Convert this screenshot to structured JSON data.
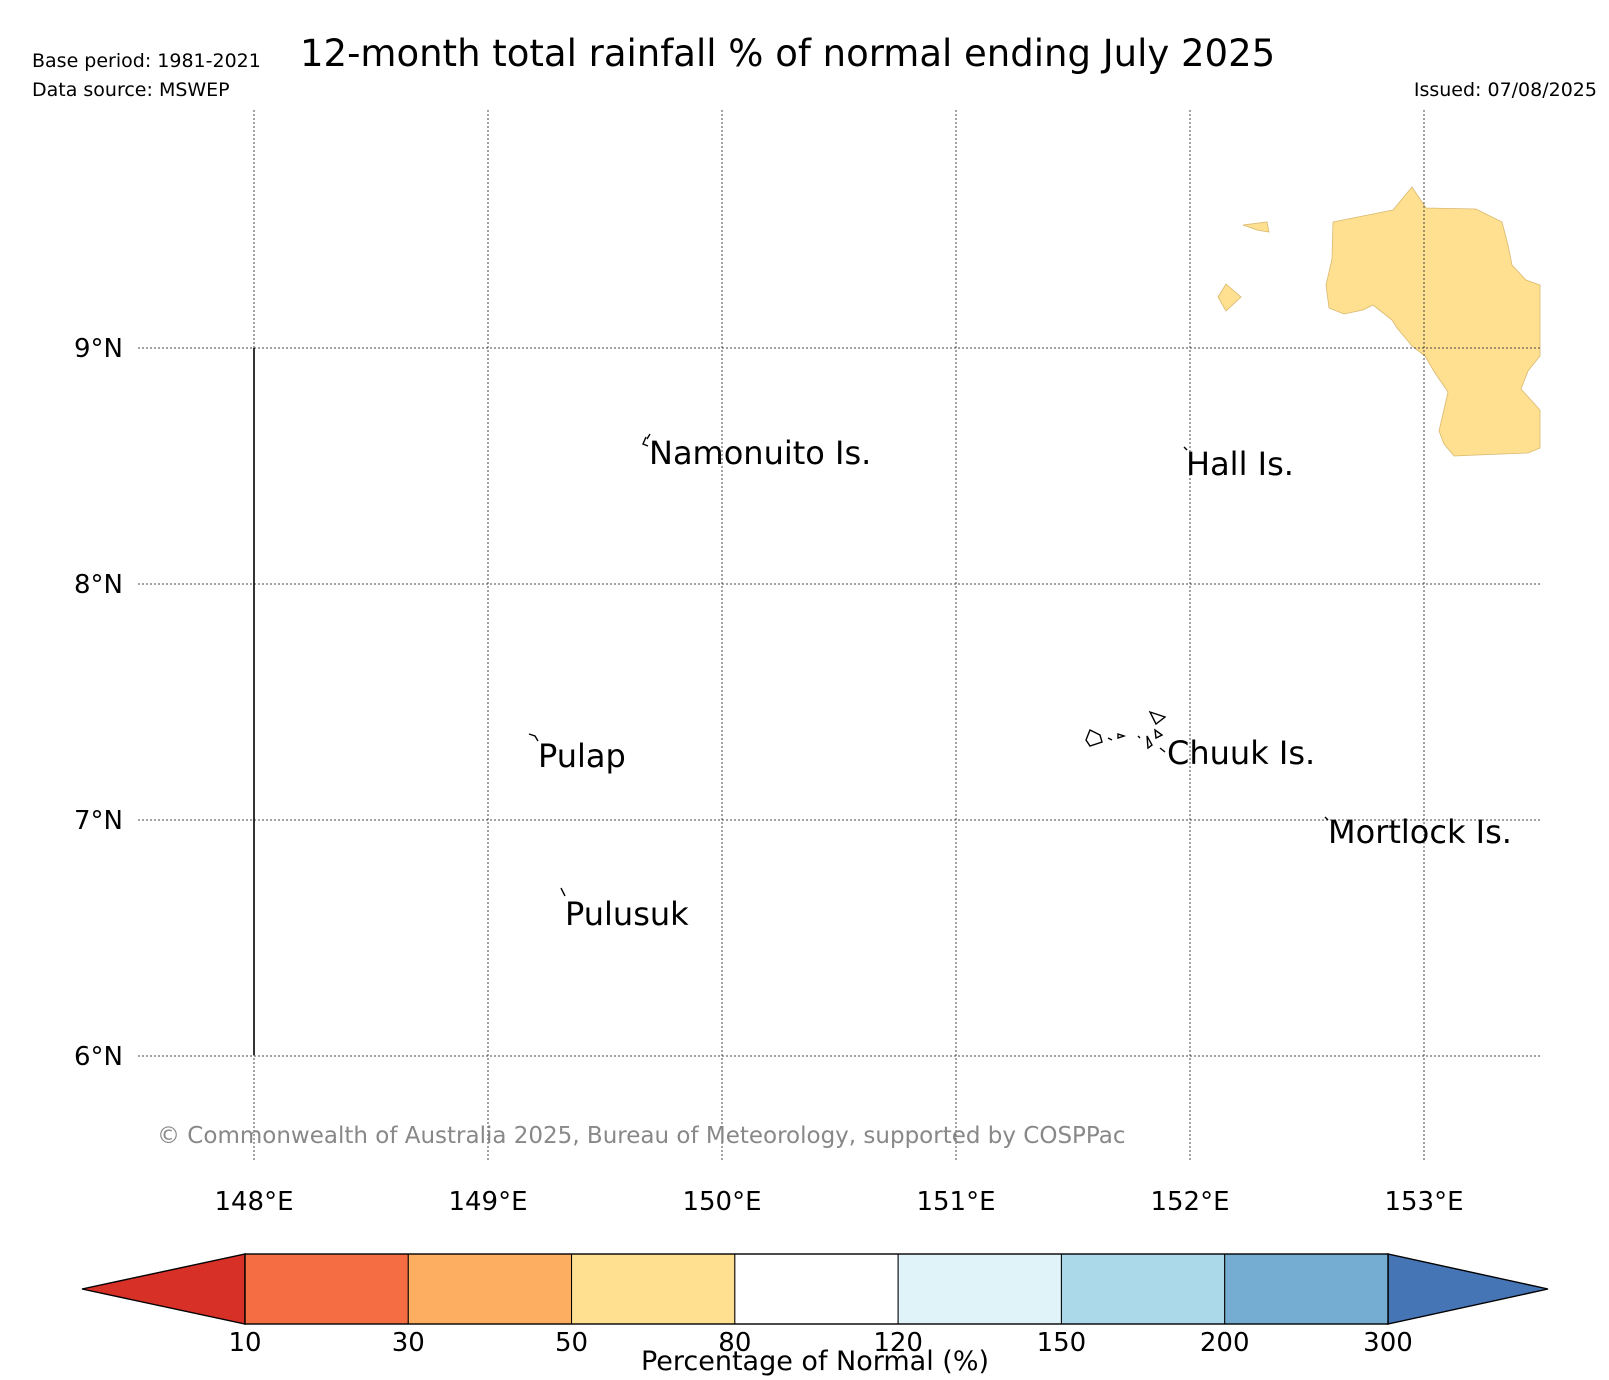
{
  "header": {
    "title": "12-month total rainfall % of normal ending July 2025",
    "base_period": "Base period: 1981-2021",
    "data_source": "Data source: MSWEP",
    "issued": "Issued: 07/08/2025"
  },
  "map": {
    "lon_ticks": [
      148,
      149,
      150,
      151,
      152,
      153
    ],
    "lat_ticks": [
      9,
      8,
      7,
      6
    ],
    "lon_labels": [
      "148°E",
      "149°E",
      "150°E",
      "151°E",
      "152°E",
      "153°E"
    ],
    "lat_labels": [
      "9°N",
      "8°N",
      "7°N",
      "6°N"
    ],
    "islands": [
      {
        "name": "Namonuito Is."
      },
      {
        "name": "Hall Is."
      },
      {
        "name": "Pulap"
      },
      {
        "name": "Chuuk Is."
      },
      {
        "name": "Mortlock Is."
      },
      {
        "name": "Pulusuk"
      }
    ],
    "copyright": "© Commonwealth of Australia 2025, Bureau of Meteorology, supported by COSPPac",
    "shaded_region_category": "50-80"
  },
  "colorbar": {
    "label": "Percentage of Normal (%)",
    "tick_labels": [
      "10",
      "30",
      "50",
      "80",
      "120",
      "150",
      "200",
      "300"
    ],
    "under_color": "#d73027",
    "over_color": "#4575b4",
    "colors": [
      "#f46d43",
      "#fdae61",
      "#fee090",
      "#ffffff",
      "#e0f3f8",
      "#abd9e9",
      "#74add1"
    ]
  }
}
